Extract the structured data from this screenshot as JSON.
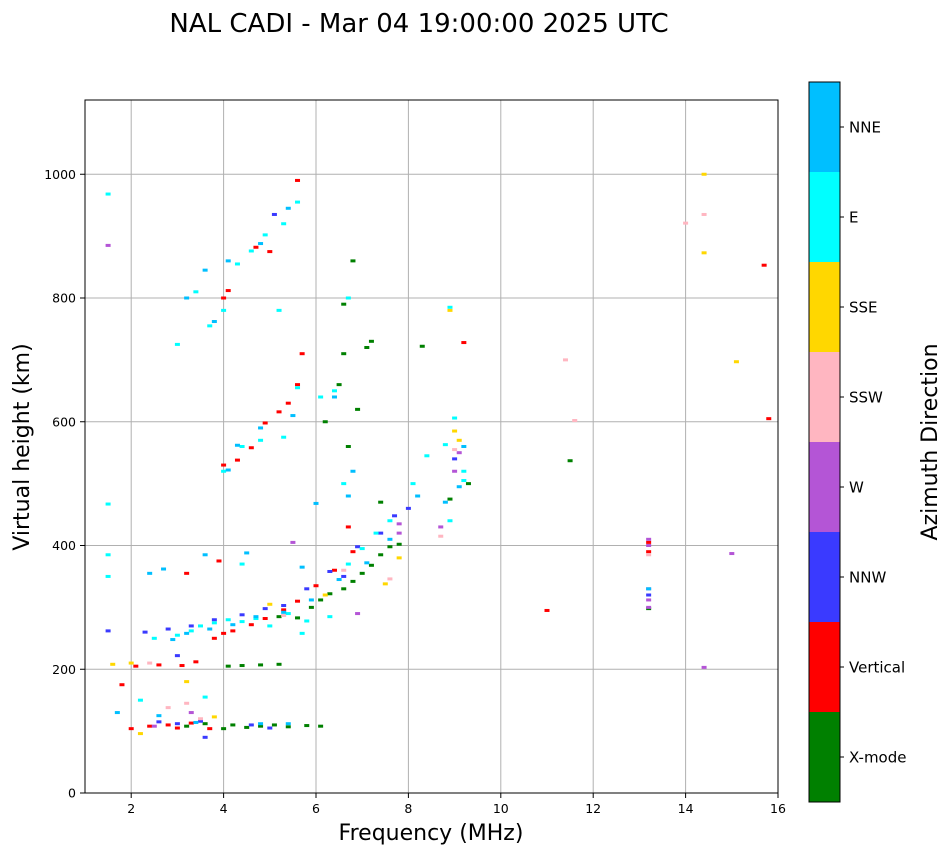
{
  "chart_data": {
    "type": "scatter",
    "title": "NAL CADI - Mar 04 19:00:00 2025 UTC",
    "xlabel": "Frequency (MHz)",
    "ylabel": "Virtual height (km)",
    "xlim": [
      1,
      16
    ],
    "ylim": [
      0,
      1120
    ],
    "xticks": [
      "2",
      "4",
      "6",
      "8",
      "10",
      "12",
      "14",
      "16"
    ],
    "yticks": [
      "0",
      "200",
      "400",
      "600",
      "800",
      "1000"
    ],
    "grid": true,
    "colorbar": {
      "title": "Azimuth Direction",
      "categories": [
        "X-mode",
        "Vertical",
        "NNW",
        "W",
        "SSW",
        "SSE",
        "E",
        "NNE"
      ],
      "colors": [
        "#008000",
        "#ff0000",
        "#3a3aff",
        "#b455d6",
        "#ffb6c1",
        "#ffd700",
        "#00ffff",
        "#00bfff"
      ]
    },
    "series": [
      {
        "name": "X-mode",
        "points": [
          [
            3.2,
            108
          ],
          [
            3.6,
            112
          ],
          [
            4.0,
            104
          ],
          [
            4.2,
            110
          ],
          [
            4.5,
            106
          ],
          [
            4.8,
            108
          ],
          [
            5.1,
            110
          ],
          [
            5.4,
            107
          ],
          [
            5.8,
            109
          ],
          [
            6.1,
            108
          ],
          [
            4.1,
            205
          ],
          [
            4.4,
            206
          ],
          [
            4.8,
            207
          ],
          [
            5.2,
            208
          ],
          [
            5.2,
            285
          ],
          [
            5.6,
            283
          ],
          [
            5.9,
            300
          ],
          [
            6.1,
            312
          ],
          [
            6.3,
            322
          ],
          [
            6.6,
            330
          ],
          [
            6.8,
            342
          ],
          [
            7.0,
            355
          ],
          [
            7.2,
            368
          ],
          [
            7.4,
            385
          ],
          [
            7.6,
            398
          ],
          [
            7.8,
            402
          ],
          [
            6.9,
            620
          ],
          [
            6.5,
            660
          ],
          [
            6.6,
            710
          ],
          [
            7.1,
            720
          ],
          [
            7.2,
            730
          ],
          [
            8.3,
            722
          ],
          [
            6.8,
            860
          ],
          [
            6.6,
            790
          ],
          [
            6.2,
            600
          ],
          [
            9.3,
            500
          ],
          [
            8.9,
            475
          ],
          [
            11.5,
            537
          ],
          [
            13.2,
            298
          ],
          [
            7.4,
            470
          ],
          [
            6.7,
            560
          ]
        ]
      },
      {
        "name": "Vertical",
        "points": [
          [
            2.0,
            104
          ],
          [
            2.4,
            108
          ],
          [
            2.8,
            110
          ],
          [
            3.0,
            105
          ],
          [
            3.3,
            113
          ],
          [
            3.7,
            104
          ],
          [
            2.1,
            205
          ],
          [
            2.6,
            207
          ],
          [
            3.1,
            206
          ],
          [
            3.4,
            212
          ],
          [
            3.8,
            250
          ],
          [
            4.0,
            258
          ],
          [
            4.2,
            262
          ],
          [
            4.6,
            272
          ],
          [
            4.9,
            282
          ],
          [
            5.3,
            296
          ],
          [
            5.6,
            310
          ],
          [
            6.0,
            335
          ],
          [
            6.4,
            360
          ],
          [
            6.8,
            390
          ],
          [
            4.0,
            530
          ],
          [
            4.3,
            538
          ],
          [
            4.6,
            558
          ],
          [
            4.9,
            598
          ],
          [
            5.2,
            616
          ],
          [
            5.4,
            630
          ],
          [
            5.6,
            660
          ],
          [
            5.7,
            710
          ],
          [
            4.0,
            800
          ],
          [
            4.1,
            812
          ],
          [
            4.7,
            882
          ],
          [
            5.0,
            875
          ],
          [
            5.6,
            990
          ],
          [
            9.2,
            728
          ],
          [
            3.2,
            355
          ],
          [
            3.9,
            375
          ],
          [
            11.0,
            295
          ],
          [
            13.2,
            405
          ],
          [
            13.2,
            390
          ],
          [
            15.7,
            853
          ],
          [
            15.8,
            605
          ],
          [
            6.7,
            430
          ],
          [
            1.8,
            175
          ]
        ]
      },
      {
        "name": "NNW",
        "points": [
          [
            2.6,
            115
          ],
          [
            3.0,
            112
          ],
          [
            3.5,
            116
          ],
          [
            4.6,
            110
          ],
          [
            5.0,
            105
          ],
          [
            2.3,
            260
          ],
          [
            2.8,
            265
          ],
          [
            3.3,
            270
          ],
          [
            3.8,
            280
          ],
          [
            4.4,
            288
          ],
          [
            4.9,
            298
          ],
          [
            5.3,
            303
          ],
          [
            5.8,
            330
          ],
          [
            6.3,
            358
          ],
          [
            6.9,
            398
          ],
          [
            7.4,
            420
          ],
          [
            7.7,
            448
          ],
          [
            8.0,
            460
          ],
          [
            1.5,
            262
          ],
          [
            3.6,
            90
          ],
          [
            5.1,
            935
          ],
          [
            9.0,
            540
          ],
          [
            13.2,
            320
          ],
          [
            3.0,
            222
          ],
          [
            6.6,
            350
          ]
        ]
      },
      {
        "name": "W",
        "points": [
          [
            1.5,
            885
          ],
          [
            7.8,
            420
          ],
          [
            7.8,
            435
          ],
          [
            8.7,
            430
          ],
          [
            9.0,
            520
          ],
          [
            9.1,
            550
          ],
          [
            13.2,
            410
          ],
          [
            13.2,
            400
          ],
          [
            13.2,
            330
          ],
          [
            13.2,
            312
          ],
          [
            13.2,
            300
          ],
          [
            15.0,
            387
          ],
          [
            14.4,
            203
          ],
          [
            3.3,
            130
          ],
          [
            2.5,
            108
          ],
          [
            6.9,
            290
          ],
          [
            5.5,
            405
          ]
        ]
      },
      {
        "name": "SSW",
        "points": [
          [
            2.8,
            138
          ],
          [
            3.2,
            145
          ],
          [
            2.4,
            210
          ],
          [
            3.5,
            120
          ],
          [
            8.7,
            415
          ],
          [
            9.0,
            555
          ],
          [
            11.4,
            700
          ],
          [
            11.6,
            602
          ],
          [
            13.2,
            385
          ],
          [
            14.0,
            921
          ],
          [
            14.4,
            935
          ],
          [
            5.3,
            287
          ],
          [
            6.6,
            360
          ],
          [
            7.6,
            346
          ]
        ]
      },
      {
        "name": "SSE",
        "points": [
          [
            1.6,
            208
          ],
          [
            2.0,
            210
          ],
          [
            3.2,
            180
          ],
          [
            2.2,
            96
          ],
          [
            3.8,
            123
          ],
          [
            8.9,
            780
          ],
          [
            9.0,
            585
          ],
          [
            9.1,
            570
          ],
          [
            7.8,
            380
          ],
          [
            7.5,
            338
          ],
          [
            14.4,
            1000
          ],
          [
            14.4,
            873
          ],
          [
            15.1,
            697
          ],
          [
            5.0,
            305
          ],
          [
            6.2,
            320
          ]
        ]
      },
      {
        "name": "E",
        "points": [
          [
            2.5,
            250
          ],
          [
            3.0,
            255
          ],
          [
            3.3,
            262
          ],
          [
            3.5,
            270
          ],
          [
            3.8,
            275
          ],
          [
            4.1,
            280
          ],
          [
            4.4,
            277
          ],
          [
            4.7,
            282
          ],
          [
            5.0,
            270
          ],
          [
            5.4,
            290
          ],
          [
            5.8,
            278
          ],
          [
            6.3,
            285
          ],
          [
            6.7,
            370
          ],
          [
            7.0,
            395
          ],
          [
            7.3,
            420
          ],
          [
            7.6,
            440
          ],
          [
            8.1,
            500
          ],
          [
            8.4,
            545
          ],
          [
            8.8,
            563
          ],
          [
            9.0,
            606
          ],
          [
            9.2,
            520
          ],
          [
            9.2,
            505
          ],
          [
            8.9,
            440
          ],
          [
            4.0,
            520
          ],
          [
            4.4,
            560
          ],
          [
            4.8,
            570
          ],
          [
            5.3,
            575
          ],
          [
            5.6,
            655
          ],
          [
            6.1,
            640
          ],
          [
            6.4,
            650
          ],
          [
            3.0,
            725
          ],
          [
            3.4,
            810
          ],
          [
            3.7,
            755
          ],
          [
            4.0,
            780
          ],
          [
            4.3,
            855
          ],
          [
            4.6,
            876
          ],
          [
            4.9,
            902
          ],
          [
            5.3,
            920
          ],
          [
            5.6,
            955
          ],
          [
            1.5,
            968
          ],
          [
            1.5,
            467
          ],
          [
            1.5,
            385
          ],
          [
            1.5,
            350
          ],
          [
            2.2,
            150
          ],
          [
            3.6,
            155
          ],
          [
            4.4,
            370
          ],
          [
            6.6,
            500
          ],
          [
            5.2,
            780
          ],
          [
            8.9,
            785
          ],
          [
            5.7,
            258
          ],
          [
            6.7,
            800
          ]
        ]
      },
      {
        "name": "NNE",
        "points": [
          [
            1.7,
            130
          ],
          [
            2.6,
            125
          ],
          [
            3.4,
            114
          ],
          [
            4.8,
            112
          ],
          [
            5.4,
            112
          ],
          [
            2.4,
            355
          ],
          [
            2.7,
            362
          ],
          [
            3.6,
            385
          ],
          [
            4.5,
            388
          ],
          [
            2.9,
            248
          ],
          [
            3.2,
            258
          ],
          [
            3.7,
            265
          ],
          [
            4.2,
            272
          ],
          [
            4.7,
            285
          ],
          [
            5.3,
            292
          ],
          [
            5.9,
            312
          ],
          [
            6.5,
            345
          ],
          [
            7.1,
            372
          ],
          [
            7.6,
            410
          ],
          [
            8.2,
            480
          ],
          [
            8.8,
            470
          ],
          [
            9.1,
            495
          ],
          [
            9.2,
            560
          ],
          [
            6.7,
            480
          ],
          [
            6.0,
            468
          ],
          [
            5.7,
            365
          ],
          [
            4.3,
            562
          ],
          [
            4.8,
            590
          ],
          [
            5.5,
            610
          ],
          [
            6.4,
            640
          ],
          [
            3.6,
            845
          ],
          [
            4.1,
            860
          ],
          [
            4.8,
            888
          ],
          [
            5.4,
            945
          ],
          [
            3.2,
            800
          ],
          [
            3.8,
            762
          ],
          [
            6.8,
            520
          ],
          [
            13.2,
            330
          ],
          [
            4.1,
            522
          ]
        ]
      }
    ]
  }
}
